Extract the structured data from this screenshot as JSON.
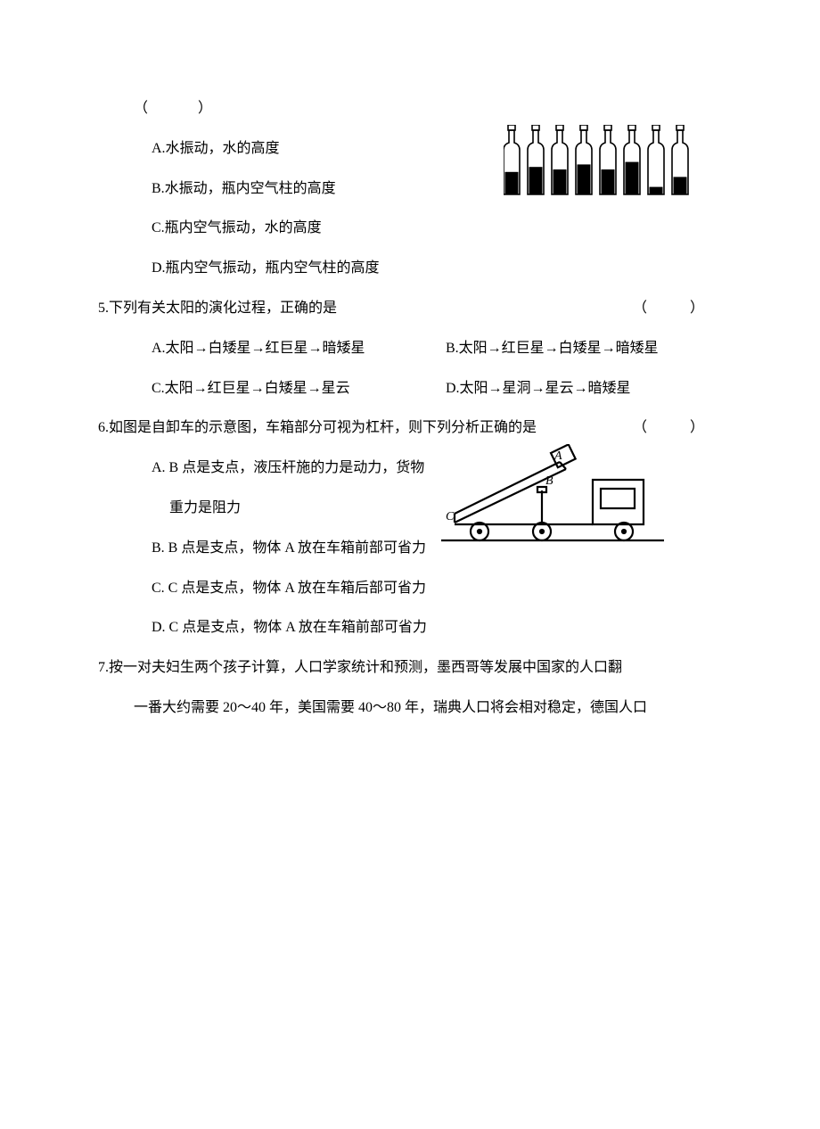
{
  "q4": {
    "blank": "（　　　）",
    "optA": "A.水振动，水的高度",
    "optB": "B.水振动，瓶内空气柱的高度",
    "optC": "C.瓶内空气振动，水的高度",
    "optD": "D.瓶内空气振动，瓶内空气柱的高度"
  },
  "q5": {
    "stem": "5.下列有关太阳的演化过程，正确的是",
    "paren": "（　　　）",
    "optA": "A.太阳→白矮星→红巨星→暗矮星",
    "optB": "B.太阳→红巨星→白矮星→暗矮星",
    "optC": "C.太阳→红巨星→白矮星→星云",
    "optD": "D.太阳→星洞→星云→暗矮星"
  },
  "q6": {
    "stem": "6.如图是自卸车的示意图，车箱部分可视为杠杆，则下列分析正确的是",
    "paren": "（　　　）",
    "optA1": "A. B 点是支点，液压杆施的力是动力，货物",
    "optA2": "重力是阻力",
    "optB": "B. B 点是支点，物体 A 放在车箱前部可省力",
    "optC": "C. C 点是支点，物体 A 放在车箱后部可省力",
    "optD": "D. C 点是支点，物体 A 放在车箱前部可省力",
    "labelA": "A",
    "labelB": "B",
    "labelC": "C"
  },
  "q7": {
    "line1": "7.按一对夫妇生两个孩子计算，人口学家统计和预测，墨西哥等发展中国家的人口翻",
    "line2": "一番大约需要 20～40 年，美国需要 40～80 年，瑞典人口将会相对稳定，德国人口"
  },
  "figures": {
    "bottles": {
      "count": 8,
      "water_levels": [
        0.45,
        0.55,
        0.5,
        0.6,
        0.5,
        0.65,
        0.15,
        0.35
      ],
      "bottle_stroke": "#000000",
      "water_fill": "#000000",
      "bg": "#ffffff"
    },
    "truck": {
      "stroke": "#000000",
      "fill": "#ffffff",
      "stroke_width": 2
    }
  }
}
